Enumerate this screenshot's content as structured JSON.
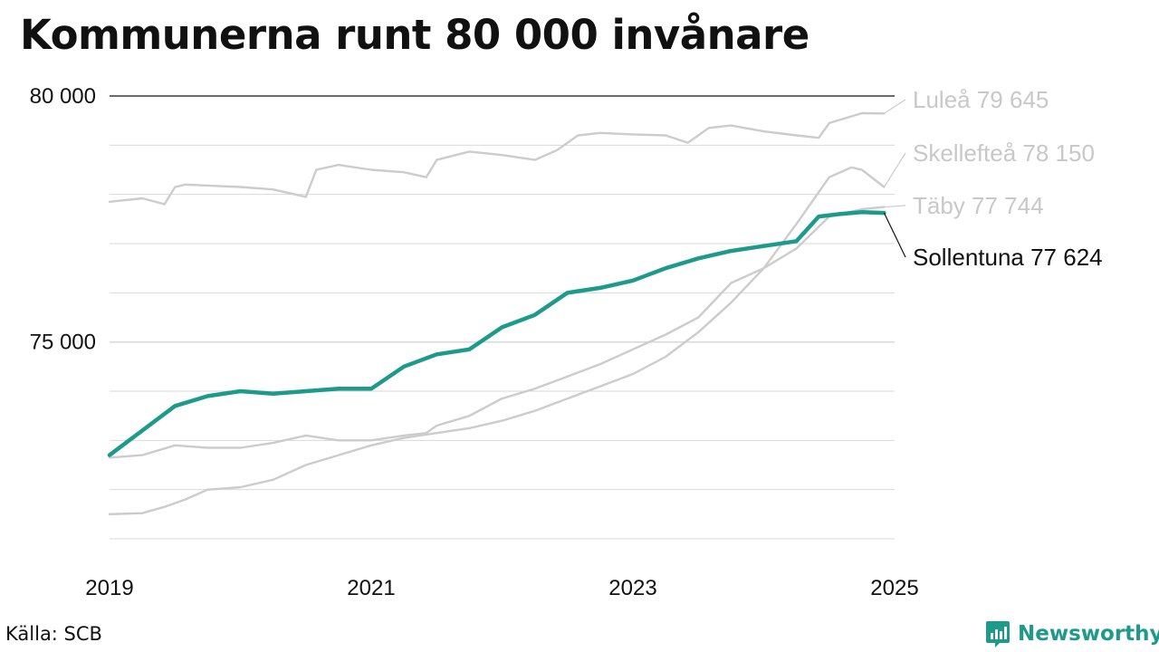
{
  "title": "Kommunerna runt 80 000 invånare",
  "source": "Källa: SCB",
  "brand": {
    "name": "Newsworthy",
    "icon": "newsworthy-logo-icon",
    "color": "#1e9a8a"
  },
  "chart_data": {
    "type": "line",
    "title": "Kommunerna runt 80 000 invånare",
    "xlim": [
      2019,
      2025
    ],
    "ylim": [
      71000,
      80000
    ],
    "x_ticks": [
      2019,
      2021,
      2023,
      2025
    ],
    "x_tick_labels": [
      "2019",
      "2021",
      "2023",
      "2025"
    ],
    "y_ticks": [
      75000,
      80000
    ],
    "y_tick_labels": [
      "75 000",
      "80 000"
    ],
    "y_gridlines": [
      71000,
      72000,
      73000,
      74000,
      75000,
      76000,
      77000,
      78000,
      79000,
      80000
    ],
    "grid": true,
    "legend": "direct labels at right end of lines",
    "series": [
      {
        "name": "Luleå",
        "end_label": "Luleå 79 645",
        "color": "#cccccc",
        "highlight": false,
        "x": [
          2019,
          2019.25,
          2019.42,
          2019.5,
          2019.58,
          2019.75,
          2020,
          2020.25,
          2020.5,
          2020.58,
          2020.75,
          2021,
          2021.25,
          2021.42,
          2021.5,
          2021.75,
          2022,
          2022.25,
          2022.42,
          2022.58,
          2022.75,
          2023,
          2023.25,
          2023.42,
          2023.58,
          2023.75,
          2024,
          2024.25,
          2024.42,
          2024.5,
          2024.75,
          2024.92
        ],
        "y": [
          77850,
          77920,
          77800,
          78150,
          78200,
          78180,
          78150,
          78100,
          77950,
          78500,
          78600,
          78500,
          78450,
          78350,
          78700,
          78870,
          78800,
          78700,
          78900,
          79200,
          79250,
          79220,
          79200,
          79050,
          79350,
          79400,
          79280,
          79200,
          79150,
          79450,
          79650,
          79645
        ]
      },
      {
        "name": "Skellefteå",
        "end_label": "Skellefteå 78 150",
        "color": "#cccccc",
        "highlight": false,
        "x": [
          2019,
          2019.25,
          2019.42,
          2019.58,
          2019.75,
          2020,
          2020.25,
          2020.5,
          2020.75,
          2021,
          2021.25,
          2021.5,
          2021.75,
          2022,
          2022.25,
          2022.5,
          2022.75,
          2023,
          2023.25,
          2023.5,
          2023.75,
          2024,
          2024.25,
          2024.5,
          2024.67,
          2024.75,
          2024.92
        ],
        "y": [
          71500,
          71520,
          71650,
          71800,
          72000,
          72050,
          72200,
          72500,
          72700,
          72900,
          73050,
          73150,
          73250,
          73400,
          73600,
          73850,
          74100,
          74350,
          74700,
          75200,
          75800,
          76500,
          77400,
          78350,
          78550,
          78500,
          78150
        ]
      },
      {
        "name": "Täby",
        "end_label": "Täby 77 744",
        "color": "#cccccc",
        "highlight": false,
        "x": [
          2019,
          2019.25,
          2019.5,
          2019.75,
          2020,
          2020.25,
          2020.5,
          2020.75,
          2021,
          2021.25,
          2021.42,
          2021.5,
          2021.75,
          2022,
          2022.25,
          2022.5,
          2022.75,
          2023,
          2023.25,
          2023.5,
          2023.75,
          2024,
          2024.25,
          2024.5,
          2024.75,
          2024.92
        ],
        "y": [
          72650,
          72700,
          72900,
          72850,
          72850,
          72950,
          73100,
          73000,
          73000,
          73100,
          73150,
          73300,
          73500,
          73850,
          74050,
          74300,
          74550,
          74850,
          75150,
          75500,
          76200,
          76500,
          76900,
          77550,
          77700,
          77744
        ]
      },
      {
        "name": "Sollentuna",
        "end_label": "Sollentuna 77 624",
        "color": "#1e9a8a",
        "highlight": true,
        "x": [
          2019,
          2019.25,
          2019.5,
          2019.75,
          2020,
          2020.25,
          2020.5,
          2020.75,
          2021,
          2021.25,
          2021.5,
          2021.75,
          2022,
          2022.25,
          2022.5,
          2022.75,
          2023,
          2023.25,
          2023.5,
          2023.75,
          2024,
          2024.25,
          2024.42,
          2024.58,
          2024.75,
          2024.92
        ],
        "y": [
          72700,
          73200,
          73700,
          73900,
          74000,
          73950,
          74000,
          74050,
          74050,
          74500,
          74750,
          74850,
          75300,
          75550,
          76000,
          76100,
          76250,
          76500,
          76700,
          76850,
          76950,
          77050,
          77550,
          77600,
          77640,
          77624
        ]
      }
    ]
  }
}
